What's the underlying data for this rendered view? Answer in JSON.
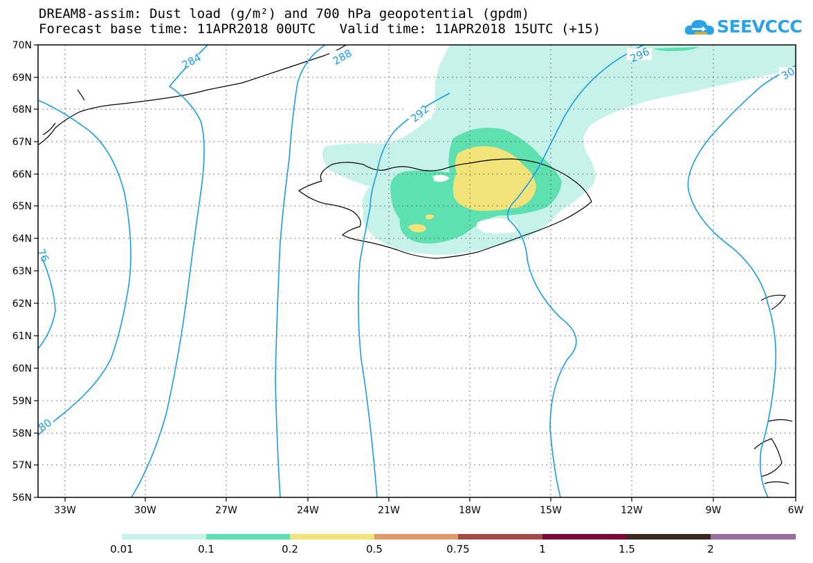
{
  "title_line1": "DREAM8-assim: Dust load (g/m²) and 700 hPa geopotential (gpdm)",
  "title_line2": "Forecast base time: 11APR2018 00UTC   Valid time: 11APR2018 15UTC (+15)",
  "logo_text": "SEEVCCC",
  "map": {
    "lon_labels": [
      "33W",
      "30W",
      "27W",
      "24W",
      "21W",
      "18W",
      "15W",
      "12W",
      "9W",
      "6W"
    ],
    "lat_labels": [
      "70N",
      "69N",
      "68N",
      "67N",
      "66N",
      "65N",
      "64N",
      "63N",
      "62N",
      "61N",
      "60N",
      "59N",
      "58N",
      "57N",
      "56N"
    ],
    "contour_labels": [
      "284",
      "288",
      "292",
      "296",
      "30",
      "76",
      "80"
    ]
  },
  "colorbar": {
    "labels": [
      "0.01",
      "0.1",
      "0.2",
      "0.5",
      "0.75",
      "1",
      "1.5",
      "2"
    ],
    "colors": [
      "#c6f2ea",
      "#5fe0b0",
      "#f2e479",
      "#e39a6b",
      "#a44a45",
      "#7d0a34",
      "#3a2a1e",
      "#9a6f9f"
    ]
  },
  "colors": {
    "contour": "#1a9be8",
    "dust_lowest": "#c6f2ea",
    "dust_low": "#5fe0b0",
    "dust_mid": "#f2e479"
  }
}
